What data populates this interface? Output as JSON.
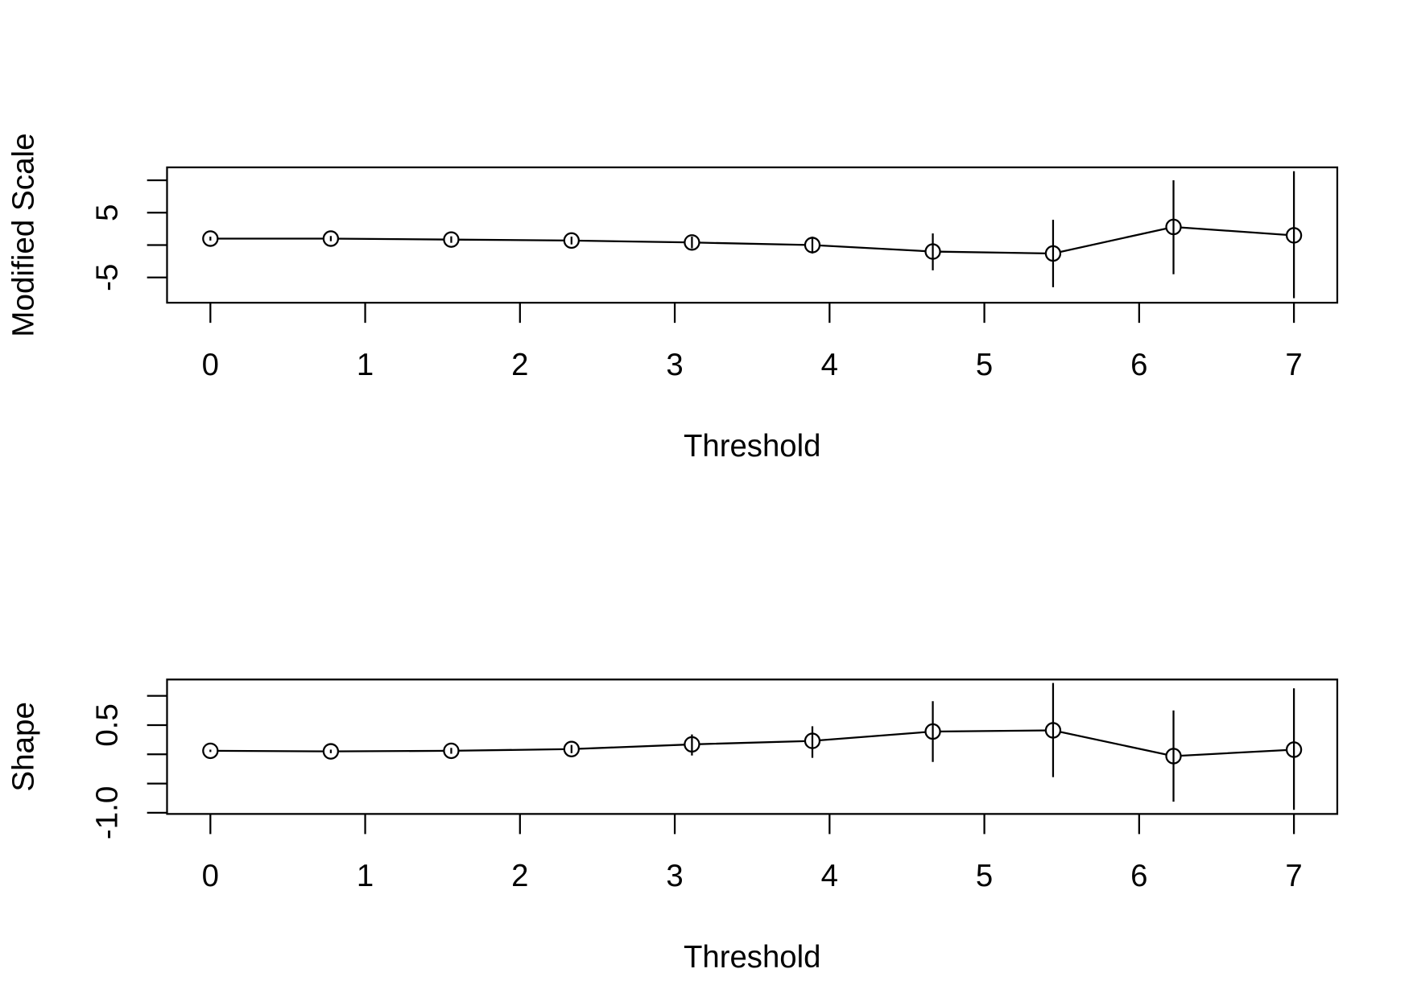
{
  "chart_data": [
    {
      "type": "line",
      "xlabel": "Threshold",
      "ylabel": "Modified Scale",
      "color": "#000000",
      "x": [
        0,
        0.778,
        1.556,
        2.333,
        3.111,
        3.889,
        4.667,
        5.444,
        6.222,
        7
      ],
      "values": [
        1.0,
        1.0,
        0.85,
        0.7,
        0.4,
        0.0,
        -1.0,
        -1.3,
        2.8,
        1.5
      ],
      "lower": [
        0.7,
        0.6,
        0.35,
        0.1,
        -0.5,
        -1.3,
        -3.9,
        -6.5,
        -4.5,
        -8.2
      ],
      "upper": [
        1.3,
        1.4,
        1.35,
        1.3,
        1.3,
        1.3,
        1.8,
        3.9,
        10.0,
        11.4
      ],
      "xlim": [
        -0.28,
        7.28
      ],
      "xticks": [
        0,
        1,
        2,
        3,
        4,
        5,
        6,
        7
      ],
      "ylim": [
        -8.9,
        12.0
      ],
      "yticks": [
        -5,
        {
          "value": 0,
          "label": null
        },
        5,
        {
          "value": 10,
          "label": null
        }
      ]
    },
    {
      "type": "line",
      "xlabel": "Threshold",
      "ylabel": "Shape",
      "color": "#000000",
      "x": [
        0,
        0.778,
        1.556,
        2.333,
        3.111,
        3.889,
        4.667,
        5.444,
        6.222,
        7
      ],
      "values": [
        0.06,
        0.05,
        0.06,
        0.09,
        0.17,
        0.23,
        0.39,
        0.41,
        -0.03,
        0.08
      ],
      "lower": [
        0.04,
        0.02,
        0.01,
        0.02,
        -0.02,
        -0.06,
        -0.13,
        -0.39,
        -0.81,
        -0.95
      ],
      "upper": [
        0.08,
        0.08,
        0.11,
        0.16,
        0.34,
        0.48,
        0.91,
        1.22,
        0.75,
        1.13
      ],
      "xlim": [
        -0.28,
        7.28
      ],
      "xticks": [
        0,
        1,
        2,
        3,
        4,
        5,
        6,
        7
      ],
      "ylim": [
        -1.02,
        1.28
      ],
      "yticks": [
        {
          "value": -1,
          "label": "-1.0"
        },
        {
          "value": -0.5,
          "label": null
        },
        {
          "value": 0,
          "label": null
        },
        0.5,
        {
          "value": 1,
          "label": null
        }
      ]
    }
  ]
}
